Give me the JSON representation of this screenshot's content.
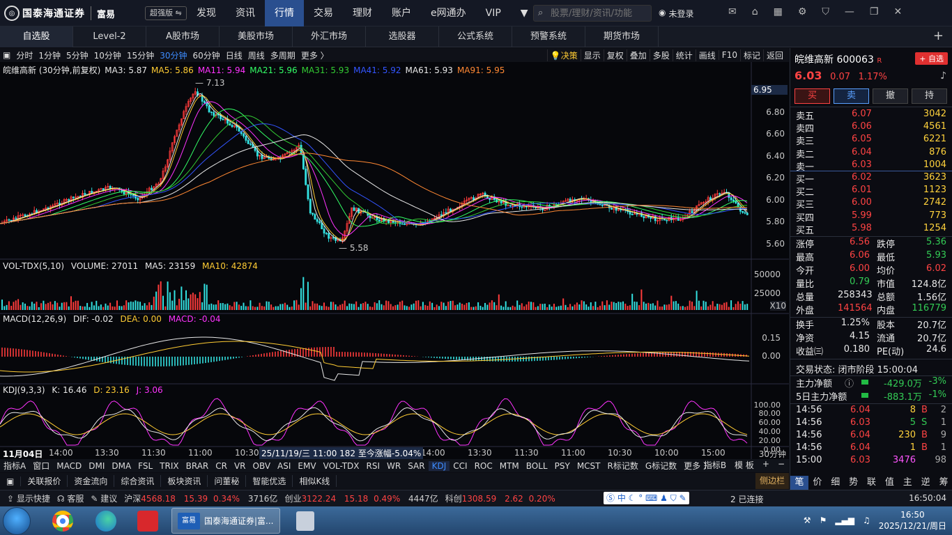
{
  "app": {
    "logo_text": "国泰海通证券",
    "logo_sub": "富易",
    "edition": "超强版",
    "nav": [
      "发现",
      "资讯",
      "行情",
      "交易",
      "理财",
      "账户",
      "e网通办",
      "VIP"
    ],
    "search_placeholder": "股票/理财/资讯/功能",
    "login": "未登录",
    "icons": [
      "mail-icon",
      "lock-icon",
      "grid-icon",
      "gear-icon",
      "shirt-icon",
      "minimize-icon",
      "restore-icon",
      "close-icon"
    ]
  },
  "tabs": [
    "自选股",
    "Level-2",
    "A股市场",
    "美股市场",
    "外汇市场",
    "选股器",
    "公式系统",
    "预警系统",
    "期货市场"
  ],
  "periods": [
    "分时",
    "1分钟",
    "5分钟",
    "10分钟",
    "15分钟",
    "30分钟",
    "60分钟",
    "日线",
    "周线",
    "多周期",
    "更多 〉"
  ],
  "active_period": "30分钟",
  "chart_tools": [
    "决策",
    "显示",
    "复权",
    "叠加",
    "多股",
    "统计",
    "画线",
    "F10",
    "标记",
    "返回"
  ],
  "ma_legend": {
    "title": "皖维高新 (30分钟,前复权)",
    "items": [
      {
        "label": "MA3: 5.87",
        "color": "#e8e8e8"
      },
      {
        "label": "MA5: 5.86",
        "color": "#ffcc33"
      },
      {
        "label": "MA11: 5.94",
        "color": "#ff33ff"
      },
      {
        "label": "MA21: 5.96",
        "color": "#33ff66"
      },
      {
        "label": "MA31: 5.93",
        "color": "#33cc33"
      },
      {
        "label": "MA41: 5.92",
        "color": "#3355ff"
      },
      {
        "label": "MA61: 5.93",
        "color": "#e8e8e8"
      },
      {
        "label": "MA91: 5.95",
        "color": "#ff8833"
      }
    ]
  },
  "price_axis": [
    "6.95",
    "6.80",
    "6.60",
    "6.40",
    "6.20",
    "6.00",
    "5.80",
    "5.60"
  ],
  "high_mark": "7.13",
  "low_mark": "5.58",
  "vol_legend": {
    "name": "VOL-TDX(5,10)",
    "volume": "VOLUME: 27011",
    "ma5": "MA5: 23159",
    "ma10": "MA10: 42874"
  },
  "vol_axis": [
    "50000",
    "25000"
  ],
  "vol_unit": "X10",
  "macd_legend": {
    "name": "MACD(12,26,9)",
    "dif": "DIF: -0.02",
    "dea": "DEA: 0.00",
    "macd": "MACD: -0.04"
  },
  "macd_axis": [
    "0.15",
    "0.00"
  ],
  "kdj_legend": {
    "name": "KDJ(9,3,3)",
    "k": "K: 16.46",
    "d": "D: 23.16",
    "j": "J: 3.06"
  },
  "kdj_axis": [
    "100.00",
    "80.00",
    "60.00",
    "40.00",
    "20.00",
    "0.00"
  ],
  "time_axis": [
    "11月04日",
    "14:00",
    "13:30",
    "11:30",
    "11:00",
    "10:30",
    "14:00",
    "13:30",
    "11:30",
    "11:00",
    "10:30",
    "10:00",
    "15:00"
  ],
  "cursor_info": "25/11/19/三 11:00 182 至今涨幅-5.04%",
  "period_unit": "30分钟",
  "indicators": [
    "指标A",
    "窗口",
    "MACD",
    "DMI",
    "DMA",
    "FSL",
    "TRIX",
    "BRAR",
    "CR",
    "VR",
    "OBV",
    "ASI",
    "EMV",
    "VOL-TDX",
    "RSI",
    "WR",
    "SAR",
    "KDJ",
    "CCI",
    "ROC",
    "MTM",
    "BOLL",
    "PSY",
    "MCST",
    "R标记数",
    "G标记数",
    "更多 〉"
  ],
  "active_indicator": "KDJ",
  "ind_right": [
    "指标B",
    "模 板",
    "+",
    "−"
  ],
  "bottom_tabs": [
    "关联报价",
    "资金流向",
    "综合资讯",
    "板块资讯",
    "问董秘",
    "智能优选",
    "相似K线"
  ],
  "sidebar_btn": "侧边栏",
  "status": {
    "quick": "显示快捷",
    "service": "客服",
    "suggest": "建议",
    "sh_name": "沪深",
    "sh_val": "4568.18",
    "sh_chg": "15.39",
    "sh_pct": "0.34%",
    "sh_amt": "3716亿",
    "cy_name": "创业",
    "cy_val": "3122.24",
    "cy_chg": "15.18",
    "cy_pct": "0.49%",
    "cy_amt": "4447亿",
    "kc_name": "科创",
    "kc_val": "1308.59",
    "kc_chg": "2.62",
    "kc_pct": "0.20%",
    "ime": "中",
    "connected": "2 已连接",
    "time": "16:50:04"
  },
  "taskbar": {
    "active_title": "国泰海通证券|富...",
    "app_badge": "富易",
    "clock_time": "16:50",
    "clock_date": "2025/12/21/周日"
  },
  "stock": {
    "name_code": "皖维高新 600063",
    "tag": "R",
    "add_btn": "+ 自选",
    "price": "6.03",
    "change": "0.07",
    "pct": "1.17%",
    "trade_btns": [
      "买",
      "卖",
      "撤",
      "持"
    ],
    "asks": [
      {
        "label": "卖五",
        "price": "6.07",
        "vol": "3042"
      },
      {
        "label": "卖四",
        "price": "6.06",
        "vol": "4561"
      },
      {
        "label": "卖三",
        "price": "6.05",
        "vol": "6221"
      },
      {
        "label": "卖二",
        "price": "6.04",
        "vol": "876"
      },
      {
        "label": "卖一",
        "price": "6.03",
        "vol": "1004"
      }
    ],
    "bids": [
      {
        "label": "买一",
        "price": "6.02",
        "vol": "3623"
      },
      {
        "label": "买二",
        "price": "6.01",
        "vol": "1123"
      },
      {
        "label": "买三",
        "price": "6.00",
        "vol": "2742"
      },
      {
        "label": "买四",
        "price": "5.99",
        "vol": "773"
      },
      {
        "label": "买五",
        "price": "5.98",
        "vol": "1254"
      }
    ],
    "stats": [
      {
        "l1": "涨停",
        "v1": "6.56",
        "c1": "red",
        "l2": "跌停",
        "v2": "5.36",
        "c2": "green"
      },
      {
        "l1": "最高",
        "v1": "6.06",
        "c1": "red",
        "l2": "最低",
        "v2": "5.93",
        "c2": "green"
      },
      {
        "l1": "今开",
        "v1": "6.00",
        "c1": "red",
        "l2": "均价",
        "v2": "6.02",
        "c2": "red"
      },
      {
        "l1": "量比",
        "v1": "0.79",
        "c1": "green",
        "l2": "市值",
        "v2": "124.8亿",
        "c2": "white"
      },
      {
        "l1": "总量",
        "v1": "258343",
        "c1": "white",
        "l2": "总额",
        "v2": "1.56亿",
        "c2": "white"
      },
      {
        "l1": "外盘",
        "v1": "141564",
        "c1": "red",
        "l2": "内盘",
        "v2": "116779",
        "c2": "green"
      }
    ],
    "stats2": [
      {
        "l1": "换手",
        "v1": "1.25%",
        "c1": "white",
        "l2": "股本",
        "v2": "20.7亿",
        "c2": "white"
      },
      {
        "l1": "净资",
        "v1": "4.15",
        "c1": "white",
        "l2": "流通",
        "v2": "20.7亿",
        "c2": "white"
      },
      {
        "l1": "收益㈢",
        "v1": "0.180",
        "c1": "white",
        "l2": "PE(动)",
        "v2": "24.6",
        "c2": "white"
      }
    ],
    "trade_state": "交易状态: 闭市阶段 15:00:04",
    "flow1_label": "主力净额",
    "flow1_val": "-429.0万",
    "flow1_pct": "-3%",
    "flow2_label": "5日主力净额",
    "flow2_val": "-883.1万",
    "flow2_pct": "-1%",
    "ticks": [
      {
        "t": "14:56",
        "p": "6.04",
        "v": "8",
        "d": "B",
        "n": "2"
      },
      {
        "t": "14:56",
        "p": "6.03",
        "v": "5",
        "d": "S",
        "n": "1"
      },
      {
        "t": "14:56",
        "p": "6.04",
        "v": "230",
        "d": "B",
        "n": "9"
      },
      {
        "t": "14:56",
        "p": "6.04",
        "v": "1",
        "d": "B",
        "n": "1"
      },
      {
        "t": "15:00",
        "p": "6.03",
        "v": "3476",
        "d": "",
        "n": "98"
      }
    ],
    "panel_tabs": [
      "笔",
      "价",
      "细",
      "势",
      "联",
      "值",
      "主",
      "逆",
      "筹"
    ]
  }
}
